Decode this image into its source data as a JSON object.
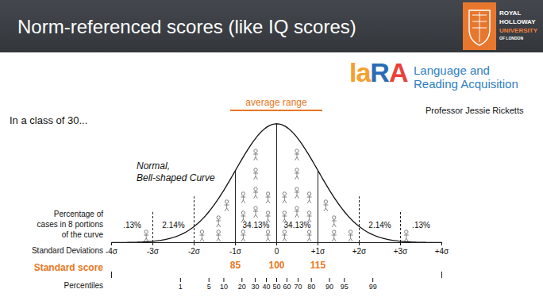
{
  "slide": {
    "title": "Norm-referenced scores (like IQ scores)",
    "institution": [
      "ROYAL",
      "HOLLOWAY",
      "UNIVERSITY",
      "OF LONDON"
    ],
    "lab_logo": [
      "la",
      "R",
      "A"
    ],
    "lab_name": [
      "Language and",
      "Reading Acquisition"
    ],
    "author": "Professor Jessie Ricketts",
    "intro": "In a class of 30..."
  },
  "chart_data": {
    "type": "normal_curve",
    "annotation": [
      "Normal,",
      "Bell-shaped Curve"
    ],
    "range_label": "average range",
    "value_axis_label": [
      "Percentage of",
      "cases in 8 portions",
      "of the curve"
    ],
    "bins": [
      -4,
      -3,
      -2,
      -1,
      0,
      1,
      2,
      3,
      4
    ],
    "values": [
      0.13,
      2.14,
      null,
      34.13,
      34.13,
      null,
      2.14,
      0.13
    ],
    "value_labels": [
      ".13%",
      "2.14%",
      null,
      "34.13%",
      "34.13%",
      null,
      "2.14%",
      ".13%"
    ],
    "data_labels": true,
    "xlabel": "Standard Deviations",
    "xlim": [
      -4,
      4
    ],
    "xticks": [
      {
        "value": -4,
        "label": "-4σ"
      },
      {
        "value": -3,
        "label": "-3σ"
      },
      {
        "value": -2,
        "label": "-2σ"
      },
      {
        "value": -1,
        "label": "-1σ"
      },
      0,
      {
        "value": 1,
        "label": "+1σ"
      },
      {
        "value": 2,
        "label": "+2σ"
      },
      {
        "value": 3,
        "label": "+3σ"
      },
      {
        "value": 4,
        "label": "+4σ"
      }
    ],
    "standard_score": {
      "label": "Standard score",
      "xlim": [
        40,
        160
      ],
      "xticks": [
        85,
        100,
        115
      ]
    },
    "percentiles": {
      "label": "Percentiles",
      "ticks": [
        {
          "value": -2.33,
          "label": "1"
        },
        {
          "value": -1.64,
          "label": "5"
        },
        {
          "value": -1.28,
          "label": "10"
        },
        {
          "value": -0.84,
          "label": "20"
        },
        {
          "value": -0.52,
          "label": "30"
        },
        {
          "value": -0.25,
          "label": "40"
        },
        {
          "value": 0,
          "label": "50"
        },
        {
          "value": 0.25,
          "label": "60"
        },
        {
          "value": 0.52,
          "label": "70"
        },
        {
          "value": 0.84,
          "label": "80"
        },
        {
          "value": 1.28,
          "label": "90"
        },
        {
          "value": 1.64,
          "label": "95"
        },
        {
          "value": 2.33,
          "label": "99"
        }
      ]
    }
  }
}
